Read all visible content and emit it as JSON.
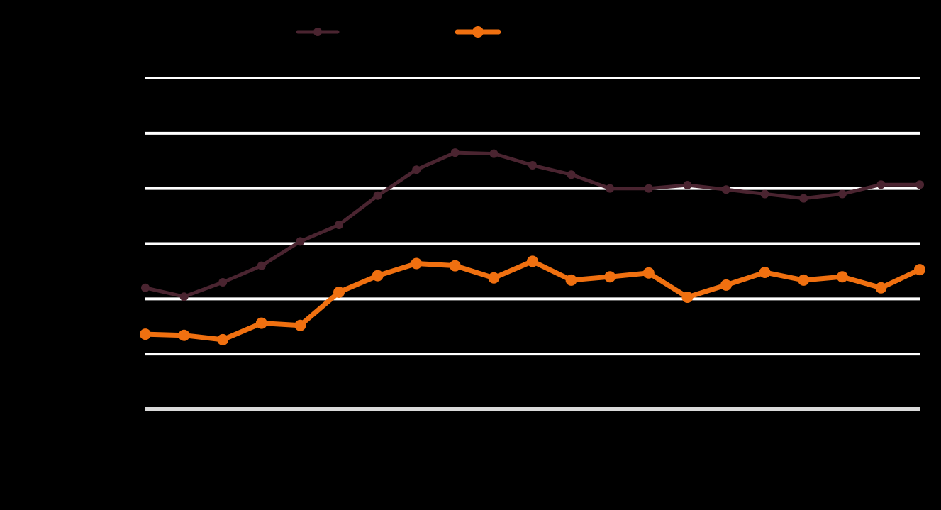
{
  "chart_data": {
    "type": "line",
    "title": "",
    "xlabel": "",
    "ylabel": "",
    "ylim": [
      0,
      6
    ],
    "grid": true,
    "legend_placement": "top-center",
    "x": [
      1,
      2,
      3,
      4,
      5,
      6,
      7,
      8,
      9,
      10,
      11,
      12,
      13,
      14,
      15,
      16,
      17,
      18,
      19,
      20,
      21
    ],
    "series": [
      {
        "color": "#4a2430",
        "values": [
          2.2,
          2.04,
          2.3,
          2.6,
          3.04,
          3.34,
          3.87,
          4.34,
          4.65,
          4.63,
          4.42,
          4.25,
          4.0,
          4.0,
          4.06,
          3.98,
          3.9,
          3.82,
          3.9,
          4.07,
          4.07
        ]
      },
      {
        "color": "#f07010",
        "values": [
          1.36,
          1.34,
          1.26,
          1.56,
          1.52,
          2.12,
          2.42,
          2.64,
          2.6,
          2.38,
          2.68,
          2.34,
          2.4,
          2.47,
          2.03,
          2.25,
          2.48,
          2.34,
          2.4,
          2.2,
          2.53
        ]
      }
    ]
  }
}
